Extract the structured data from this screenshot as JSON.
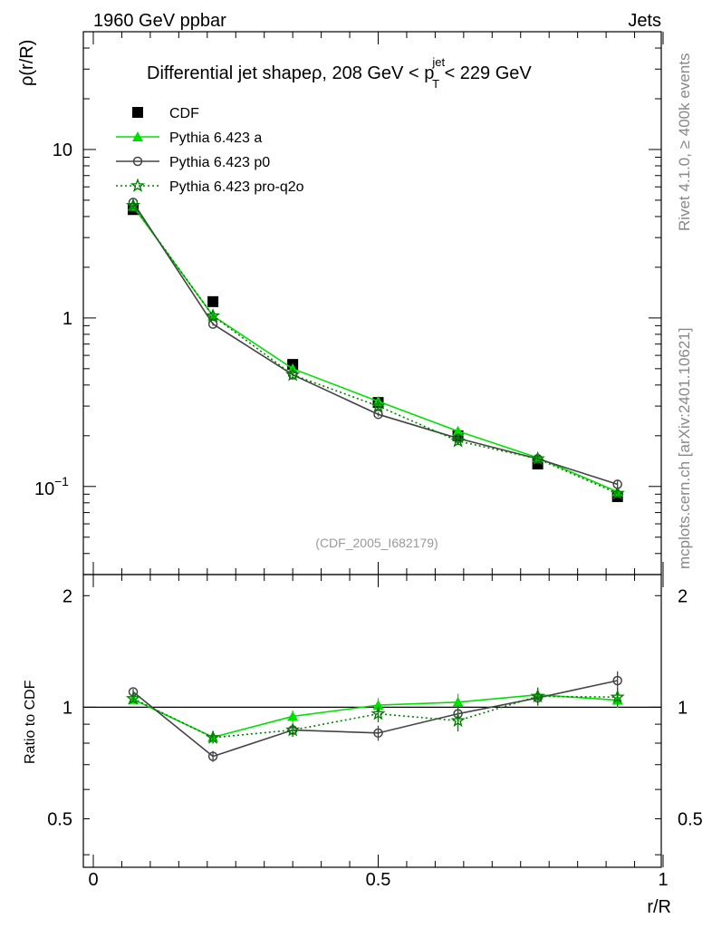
{
  "header": {
    "left": "1960 GeV ppbar",
    "right": "Jets"
  },
  "side_labels": {
    "rivet": "Rivet 4.1.0, ≥ 400k events",
    "mcplots": "mcplots.cern.ch [arXiv:2401.10621]"
  },
  "chart_data": [
    {
      "type": "line",
      "panel": "main",
      "title": "Differential jet shapeρ, 208 GeV < p",
      "title_sup": "jet",
      "title_sub": "T",
      "title_end": " < 229 GeV",
      "ylabel": "ρ(r/R)",
      "xlabel": "",
      "yscale": "log",
      "xlim": [
        0,
        1
      ],
      "ylim": [
        0.03,
        50
      ],
      "ytick_labels": [
        "10",
        "1"
      ],
      "ytick_values": [
        10,
        1
      ],
      "ytick_exp_label": {
        "base": "10",
        "exp": "−1",
        "value": 0.1
      },
      "watermark": "(CDF_2005_I682179)",
      "x": [
        0.07,
        0.21,
        0.35,
        0.5,
        0.64,
        0.78,
        0.92
      ],
      "series": [
        {
          "name": "CDF",
          "color": "#000000",
          "marker": "square",
          "line": "none",
          "values": [
            4.4,
            1.25,
            0.53,
            0.315,
            0.2,
            0.136,
            0.087
          ],
          "errors": [
            0.1,
            0.04,
            0.015,
            0.01,
            0.007,
            0.005,
            0.004
          ]
        },
        {
          "name": "Pythia 6.423 a",
          "color": "#00e000",
          "marker": "triangle",
          "line": "solid",
          "values": [
            4.6,
            1.03,
            0.5,
            0.32,
            0.213,
            0.148,
            0.093
          ],
          "errors": [
            0.08,
            0.02,
            0.01,
            0.01,
            0.01,
            0.006,
            0.005
          ]
        },
        {
          "name": "Pythia 6.423 p0",
          "color": "#444444",
          "marker": "circle",
          "line": "solid",
          "values": [
            4.85,
            0.92,
            0.46,
            0.268,
            0.193,
            0.146,
            0.103
          ],
          "errors": [
            0.08,
            0.02,
            0.01,
            0.008,
            0.008,
            0.006,
            0.006
          ]
        },
        {
          "name": "Pythia 6.423 pro-q2o",
          "color": "#008000",
          "marker": "star",
          "line": "dotted",
          "values": [
            4.65,
            1.03,
            0.46,
            0.3,
            0.186,
            0.146,
            0.091
          ],
          "errors": [
            0.08,
            0.02,
            0.01,
            0.01,
            0.01,
            0.006,
            0.005
          ]
        }
      ]
    },
    {
      "type": "line",
      "panel": "ratio",
      "ylabel": "Ratio to CDF",
      "xlabel": "r/R",
      "xlim": [
        0,
        1
      ],
      "ylim": [
        0.37,
        2.28
      ],
      "ytick_labels": [
        "2",
        "1",
        "0.5"
      ],
      "ytick_values": [
        2,
        1,
        0.5
      ],
      "xtick_labels": [
        "0",
        "0.5",
        "1"
      ],
      "xtick_values": [
        0,
        0.5,
        1
      ],
      "x": [
        0.07,
        0.21,
        0.35,
        0.5,
        0.64,
        0.78,
        0.92
      ],
      "series": [
        {
          "name": "Pythia 6.423 a",
          "color": "#00e000",
          "marker": "triangle",
          "line": "solid",
          "values": [
            1.05,
            0.83,
            0.945,
            1.013,
            1.032,
            1.08,
            1.045
          ],
          "errors": [
            0.02,
            0.03,
            0.035,
            0.045,
            0.055,
            0.05,
            0.05
          ]
        },
        {
          "name": "Pythia 6.423 p0",
          "color": "#444444",
          "marker": "circle",
          "line": "solid",
          "values": [
            1.1,
            0.737,
            0.868,
            0.852,
            0.96,
            1.06,
            1.18
          ],
          "errors": [
            0.02,
            0.025,
            0.035,
            0.04,
            0.045,
            0.05,
            0.07
          ]
        },
        {
          "name": "Pythia 6.423 pro-q2o",
          "color": "#008000",
          "marker": "star",
          "line": "dotted",
          "values": [
            1.055,
            0.828,
            0.868,
            0.96,
            0.92,
            1.07,
            1.065
          ],
          "errors": [
            0.02,
            0.03,
            0.035,
            0.05,
            0.06,
            0.06,
            0.06
          ]
        }
      ]
    }
  ]
}
